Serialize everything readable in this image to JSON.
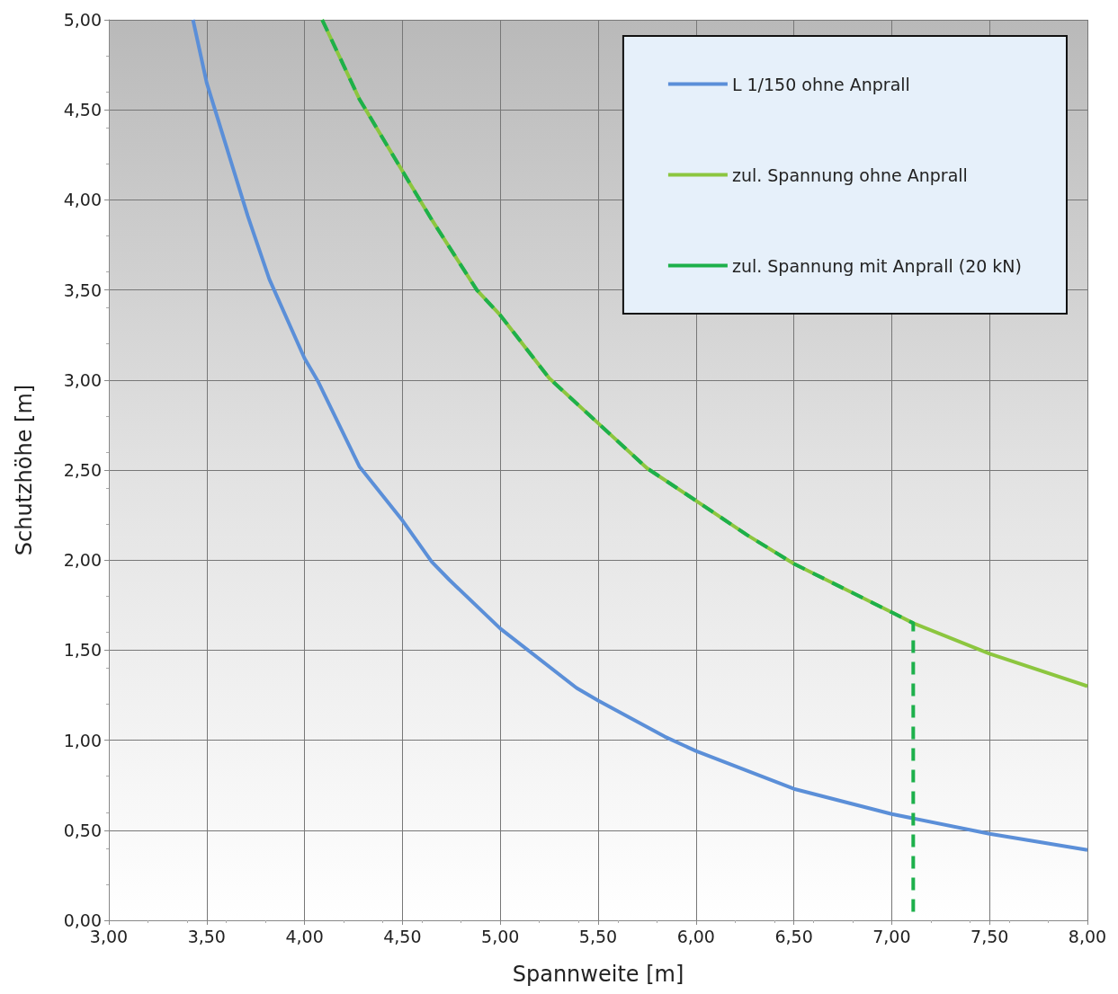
{
  "chart_data": {
    "type": "line",
    "xlabel": "Spannweite [m]",
    "ylabel": "Schutzhöhe [m]",
    "xlim": [
      3,
      8
    ],
    "ylim": [
      0,
      5
    ],
    "xticks": [
      {
        "value": 3,
        "label": "3,00"
      },
      {
        "value": 3.5,
        "label": "3,50"
      },
      {
        "value": 4,
        "label": "4,00"
      },
      {
        "value": 4.5,
        "label": "4,50"
      },
      {
        "value": 5,
        "label": "5,00"
      },
      {
        "value": 5.5,
        "label": "5,50"
      },
      {
        "value": 6,
        "label": "6,00"
      },
      {
        "value": 6.5,
        "label": "6,50"
      },
      {
        "value": 7,
        "label": "7,00"
      },
      {
        "value": 7.5,
        "label": "7,50"
      },
      {
        "value": 8,
        "label": "8,00"
      }
    ],
    "yticks": [
      {
        "value": 0,
        "label": "0,00"
      },
      {
        "value": 0.5,
        "label": "0,50"
      },
      {
        "value": 1,
        "label": "1,00"
      },
      {
        "value": 1.5,
        "label": "1,50"
      },
      {
        "value": 2,
        "label": "2,00"
      },
      {
        "value": 2.5,
        "label": "2,50"
      },
      {
        "value": 3,
        "label": "3,00"
      },
      {
        "value": 3.5,
        "label": "3,50"
      },
      {
        "value": 4,
        "label": "4,00"
      },
      {
        "value": 4.5,
        "label": "4,50"
      },
      {
        "value": 5,
        "label": "5,00"
      }
    ],
    "grid": true,
    "legend": "top right",
    "marker": "none",
    "series": [
      {
        "name": "L 1/150 ohne Anprall",
        "color": "#5b8fd8",
        "line_style": "solid",
        "x": [
          3.43,
          3.5,
          3.71,
          3.82,
          4.0,
          4.07,
          4.28,
          4.5,
          4.65,
          4.74,
          5.0,
          5.39,
          5.5,
          5.84,
          6.0,
          6.5,
          7.0,
          7.5,
          8.0
        ],
        "values": [
          5.0,
          4.65,
          3.91,
          3.56,
          3.12,
          2.99,
          2.52,
          2.22,
          1.99,
          1.89,
          1.62,
          1.29,
          1.22,
          1.02,
          0.94,
          0.73,
          0.59,
          0.48,
          0.39
        ]
      },
      {
        "name": "zul. Spannung ohne Anprall",
        "color": "#8cc63f",
        "line_style": "solid",
        "x": [
          4.09,
          4.28,
          4.5,
          4.65,
          4.88,
          5.0,
          5.25,
          5.5,
          5.75,
          6.0,
          6.26,
          6.5,
          7.0,
          7.11,
          7.5,
          8.0
        ],
        "values": [
          5.0,
          4.56,
          4.16,
          3.89,
          3.5,
          3.36,
          3.01,
          2.76,
          2.51,
          2.33,
          2.14,
          1.98,
          1.71,
          1.65,
          1.48,
          1.3
        ]
      },
      {
        "name": "zul. Spannung mit Anprall (20 kN)",
        "color": "#1db04b",
        "line_style": "dashed",
        "x": [
          4.09,
          4.28,
          4.5,
          4.65,
          4.88,
          5.0,
          5.25,
          5.5,
          5.75,
          6.0,
          6.26,
          6.5,
          7.0,
          7.11,
          7.11
        ],
        "values": [
          5.0,
          4.56,
          4.16,
          3.89,
          3.5,
          3.36,
          3.01,
          2.76,
          2.51,
          2.33,
          2.14,
          1.98,
          1.71,
          1.65,
          0
        ]
      }
    ]
  }
}
